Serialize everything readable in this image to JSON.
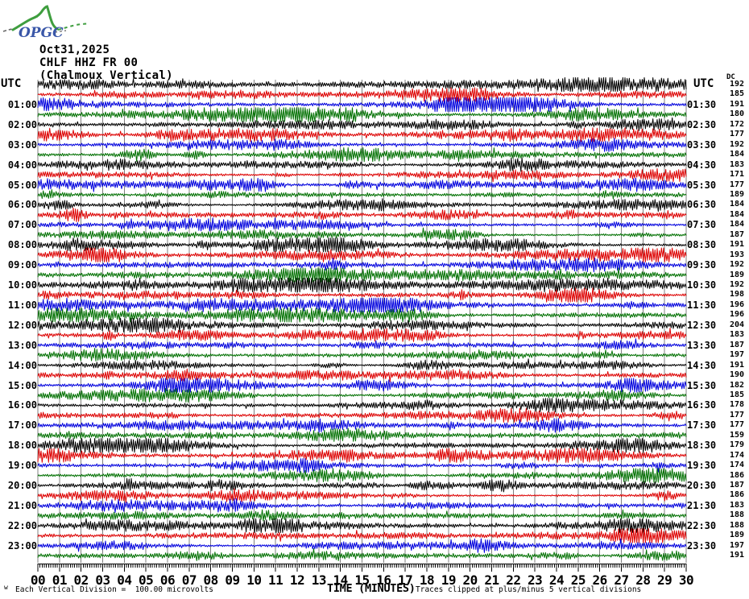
{
  "logo": {
    "text": "OPGC"
  },
  "header": {
    "date": "Oct31,2025",
    "station": "CHLF HHZ FR 00",
    "location": "(Chalmoux Vertical)"
  },
  "axes": {
    "left_header": "UTC",
    "right_header": "UTC",
    "dc_header": "DC",
    "left_labels": [
      "01:00",
      "02:00",
      "03:00",
      "04:00",
      "05:00",
      "06:00",
      "07:00",
      "08:00",
      "09:00",
      "10:00",
      "11:00",
      "12:00",
      "13:00",
      "14:00",
      "15:00",
      "16:00",
      "17:00",
      "18:00",
      "19:00",
      "20:00",
      "21:00",
      "22:00",
      "23:00"
    ],
    "right_labels": [
      "01:30",
      "02:30",
      "03:30",
      "04:30",
      "05:30",
      "06:30",
      "07:30",
      "08:30",
      "09:30",
      "10:30",
      "11:30",
      "12:30",
      "13:30",
      "14:30",
      "15:30",
      "16:30",
      "17:30",
      "18:30",
      "19:30",
      "20:30",
      "21:30",
      "22:30",
      "23:30"
    ],
    "x_tick_labels": [
      "00",
      "01",
      "02",
      "03",
      "04",
      "05",
      "06",
      "07",
      "08",
      "09",
      "10",
      "11",
      "12",
      "13",
      "14",
      "15",
      "16",
      "17",
      "18",
      "19",
      "20",
      "21",
      "22",
      "23",
      "24",
      "25",
      "26",
      "27",
      "28",
      "29",
      "30"
    ]
  },
  "footer": {
    "left_glyph": "w",
    "division_note": "Each Vertical Division =  100.00 microvolts",
    "axis_title": "TIME (MINUTES)",
    "clip_note": "Traces clipped at plus/minus 5 vertical divisions"
  },
  "chart_data": {
    "type": "line",
    "subtype": "helicorder",
    "title": "CHLF HHZ FR 00 (Chalmoux Vertical) Oct31,2025",
    "xlabel": "TIME (MINUTES)",
    "x_range_minutes": [
      0,
      30
    ],
    "minutes_per_trace": 30,
    "traces_per_hour": 2,
    "num_traces": 48,
    "grid": "vertical lines every 1 minute",
    "minor_ticks_per_minute": 10,
    "vertical_division_microvolts": 100.0,
    "clip_divisions": 5,
    "palette": {
      "black": "#000000",
      "red": "#dd0000",
      "blue": "#0000dd",
      "green": "#007000",
      "grid": "#808080"
    },
    "color_cycle": [
      "black",
      "red",
      "blue",
      "green"
    ],
    "traces": [
      {
        "start": "00:00",
        "color": "black",
        "dc": 192
      },
      {
        "start": "00:30",
        "color": "red",
        "dc": 185
      },
      {
        "start": "01:00",
        "color": "blue",
        "dc": 191
      },
      {
        "start": "01:30",
        "color": "green",
        "dc": 180
      },
      {
        "start": "02:00",
        "color": "black",
        "dc": 172
      },
      {
        "start": "02:30",
        "color": "red",
        "dc": 177
      },
      {
        "start": "03:00",
        "color": "blue",
        "dc": 192
      },
      {
        "start": "03:30",
        "color": "green",
        "dc": 184
      },
      {
        "start": "04:00",
        "color": "black",
        "dc": 183
      },
      {
        "start": "04:30",
        "color": "red",
        "dc": 171
      },
      {
        "start": "05:00",
        "color": "blue",
        "dc": 177
      },
      {
        "start": "05:30",
        "color": "green",
        "dc": 189
      },
      {
        "start": "06:00",
        "color": "black",
        "dc": 184
      },
      {
        "start": "06:30",
        "color": "red",
        "dc": 184
      },
      {
        "start": "07:00",
        "color": "blue",
        "dc": 184
      },
      {
        "start": "07:30",
        "color": "green",
        "dc": 187
      },
      {
        "start": "08:00",
        "color": "black",
        "dc": 191
      },
      {
        "start": "08:30",
        "color": "red",
        "dc": 193
      },
      {
        "start": "09:00",
        "color": "blue",
        "dc": 192
      },
      {
        "start": "09:30",
        "color": "green",
        "dc": 189
      },
      {
        "start": "10:00",
        "color": "black",
        "dc": 192
      },
      {
        "start": "10:30",
        "color": "red",
        "dc": 198
      },
      {
        "start": "11:00",
        "color": "blue",
        "dc": 196
      },
      {
        "start": "11:30",
        "color": "green",
        "dc": 196
      },
      {
        "start": "12:00",
        "color": "black",
        "dc": 204
      },
      {
        "start": "12:30",
        "color": "red",
        "dc": 183
      },
      {
        "start": "13:00",
        "color": "blue",
        "dc": 187
      },
      {
        "start": "13:30",
        "color": "green",
        "dc": 197
      },
      {
        "start": "14:00",
        "color": "black",
        "dc": 191
      },
      {
        "start": "14:30",
        "color": "red",
        "dc": 190
      },
      {
        "start": "15:00",
        "color": "blue",
        "dc": 182
      },
      {
        "start": "15:30",
        "color": "green",
        "dc": 185
      },
      {
        "start": "16:00",
        "color": "black",
        "dc": 178
      },
      {
        "start": "16:30",
        "color": "red",
        "dc": 177
      },
      {
        "start": "17:00",
        "color": "blue",
        "dc": 177
      },
      {
        "start": "17:30",
        "color": "green",
        "dc": 159
      },
      {
        "start": "18:00",
        "color": "black",
        "dc": 179
      },
      {
        "start": "18:30",
        "color": "red",
        "dc": 174
      },
      {
        "start": "19:00",
        "color": "blue",
        "dc": 174
      },
      {
        "start": "19:30",
        "color": "green",
        "dc": 186
      },
      {
        "start": "20:00",
        "color": "black",
        "dc": 187
      },
      {
        "start": "20:30",
        "color": "red",
        "dc": 186
      },
      {
        "start": "21:00",
        "color": "blue",
        "dc": 183
      },
      {
        "start": "21:30",
        "color": "green",
        "dc": 188
      },
      {
        "start": "22:00",
        "color": "black",
        "dc": 188
      },
      {
        "start": "22:30",
        "color": "red",
        "dc": 189
      },
      {
        "start": "23:00",
        "color": "blue",
        "dc": 197
      },
      {
        "start": "23:30",
        "color": "green",
        "dc": 191
      }
    ],
    "notes": [
      "Each Vertical Division = 100.00 microvolts",
      "Traces clipped at plus/minus 5 vertical divisions"
    ]
  }
}
